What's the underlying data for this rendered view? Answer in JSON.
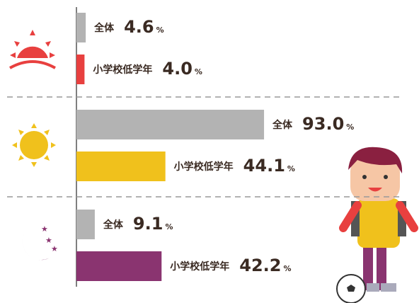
{
  "chart_data": {
    "type": "bar",
    "orientation": "horizontal",
    "unit": "%",
    "categories": [
      null,
      null,
      null
    ],
    "series": [
      {
        "name": "全体",
        "color": "#b3b3b3",
        "values": [
          4.6,
          93.0,
          9.1
        ],
        "value_labels": [
          "4.6",
          "93.0",
          "9.1"
        ]
      },
      {
        "name": "小学校低学年",
        "colors": [
          "#e8403f",
          "#f0c11c",
          "#8a3470"
        ],
        "values": [
          4.0,
          44.1,
          42.2
        ],
        "value_labels": [
          "4.0",
          "44.1",
          "42.2"
        ]
      }
    ],
    "xlim": [
      0,
      100
    ]
  }
}
